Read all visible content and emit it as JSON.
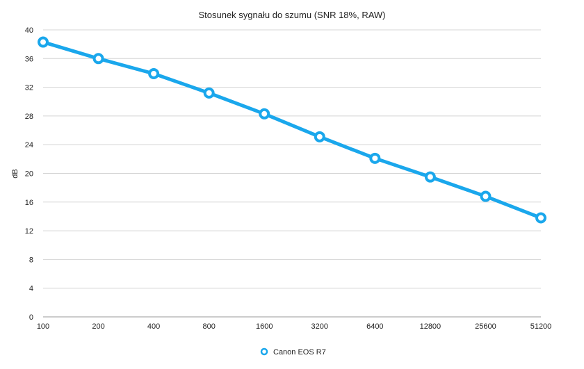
{
  "chart_data": {
    "type": "line",
    "title": "Stosunek sygnału do szumu (SNR 18%, RAW)",
    "xlabel": "",
    "ylabel": "dB",
    "categories": [
      "100",
      "200",
      "400",
      "800",
      "1600",
      "3200",
      "6400",
      "12800",
      "25600",
      "51200"
    ],
    "series": [
      {
        "name": "Canon EOS R7",
        "values": [
          38.3,
          36.0,
          33.9,
          31.2,
          28.3,
          25.1,
          22.1,
          19.5,
          16.8,
          13.8
        ],
        "color": "#1aa7ec"
      }
    ],
    "ylim": [
      0,
      40
    ],
    "yticks": [
      0,
      4,
      8,
      12,
      16,
      20,
      24,
      28,
      32,
      36,
      40
    ],
    "grid": true,
    "legend_position": "bottom-center"
  }
}
